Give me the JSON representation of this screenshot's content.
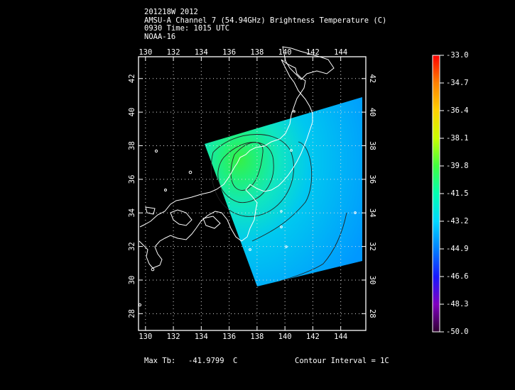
{
  "header": {
    "line1": "201218W 2012",
    "line2": "AMSU-A Channel 7 (54.94GHz) Brightness Temperature (C)",
    "line3": "0930 Time: 1015 UTC",
    "line4": "NOAA-16"
  },
  "map": {
    "lon_ticks": [
      "130",
      "132",
      "134",
      "136",
      "138",
      "140",
      "142",
      "144"
    ],
    "lat_ticks_left": [
      "42",
      "40",
      "38",
      "36",
      "34",
      "32",
      "30",
      "28"
    ],
    "lat_ticks_right": [
      "42",
      "40",
      "38",
      "36",
      "34",
      "32",
      "30",
      "28"
    ],
    "lon_range": [
      129.5,
      145.8
    ],
    "lat_range": [
      27,
      43.3
    ]
  },
  "colorbar": {
    "labels": [
      "-33.0",
      "-34.7",
      "-36.4",
      "-38.1",
      "-39.8",
      "-41.5",
      "-43.2",
      "-44.9",
      "-46.6",
      "-48.3",
      "-50.0"
    ],
    "colors": [
      "#ff0000",
      "#ff8000",
      "#ffd000",
      "#c8ff00",
      "#40ff40",
      "#00ffb0",
      "#00d8ff",
      "#0080ff",
      "#1818ff",
      "#8000c0",
      "#300030"
    ]
  },
  "footer": {
    "max_tb_label": "Max Tb:",
    "max_tb_value": "-41.9799",
    "max_tb_unit": "C",
    "contour": "Contour Interval = 1C"
  }
}
